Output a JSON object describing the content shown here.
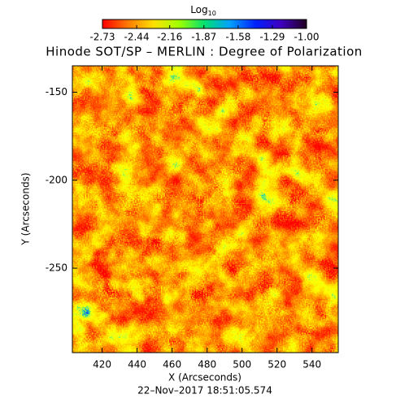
{
  "chart_data": {
    "type": "heatmap",
    "title": "Hinode SOT/SP – MERLIN : Degree of Polarization",
    "xlabel": "X (Arcseconds)",
    "ylabel": "Y (Arcseconds)",
    "footer": "22–Nov–2017 18:51:05.574",
    "xlim": [
      403,
      555
    ],
    "ylim": [
      -298,
      -135
    ],
    "xticks": [
      420,
      440,
      460,
      480,
      500,
      520,
      540
    ],
    "yticks": [
      -250,
      -200,
      -150
    ],
    "colorbar": {
      "label": "Log",
      "label_sub": "10",
      "clim": [
        -2.73,
        -1.0
      ],
      "ticks": [
        -2.73,
        -2.44,
        -2.16,
        -1.87,
        -1.58,
        -1.29,
        {
          "value": -1.0,
          "label": "-1.00"
        }
      ],
      "colors": [
        "#ff0000",
        "#ff7a00",
        "#ffe000",
        "#a0ff00",
        "#00e070",
        "#00a0ff",
        "#0020ff",
        "#4000c0",
        "#200020"
      ]
    }
  }
}
